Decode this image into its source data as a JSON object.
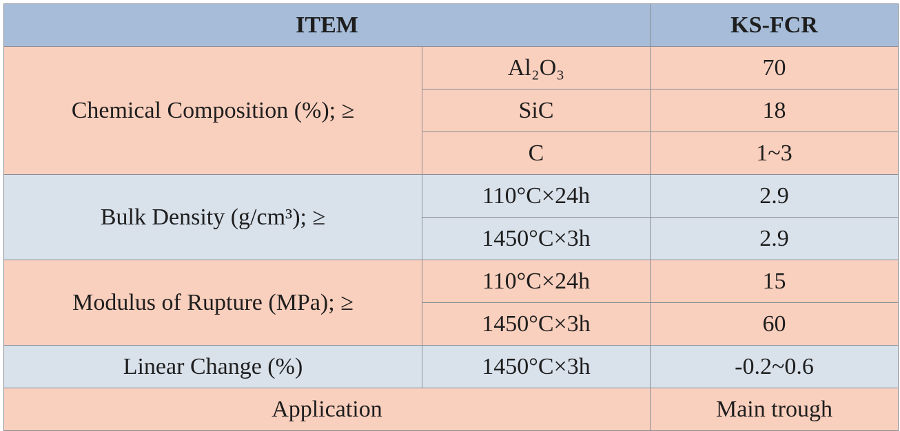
{
  "header": {
    "item": "ITEM",
    "grade": "KS-FCR"
  },
  "groups": [
    {
      "label": "Chemical Composition (%); ≥",
      "rows": [
        {
          "condition": "Al₂O₃",
          "value": "70"
        },
        {
          "condition": "SiC",
          "value": "18"
        },
        {
          "condition": "C",
          "value": "1~3"
        }
      ]
    },
    {
      "label": "Bulk Density (g/cm³); ≥",
      "rows": [
        {
          "condition": "110°C×24h",
          "value": "2.9"
        },
        {
          "condition": "1450°C×3h",
          "value": "2.9"
        }
      ]
    },
    {
      "label": "Modulus of Rupture (MPa); ≥",
      "rows": [
        {
          "condition": "110°C×24h",
          "value": "15"
        },
        {
          "condition": "1450°C×3h",
          "value": "60"
        }
      ]
    },
    {
      "label": "Linear Change (%)",
      "rows": [
        {
          "condition": "1450°C×3h",
          "value": "-0.2~0.6"
        }
      ]
    }
  ],
  "application": {
    "label": "Application",
    "value": "Main trough"
  }
}
